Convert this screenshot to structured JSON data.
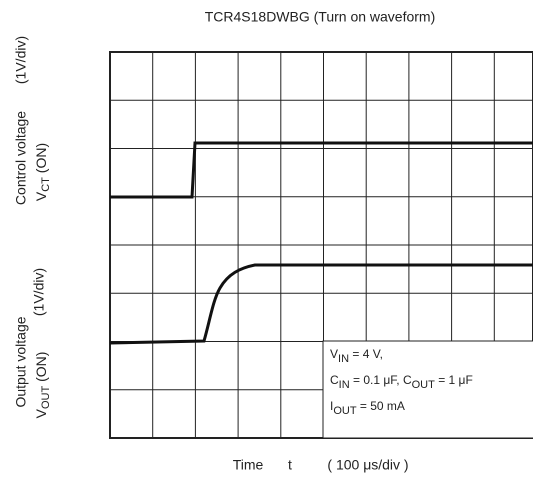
{
  "title": "TCR4S18DWBG (Turn on waveform)",
  "upper_label": {
    "line1": "Control voltage",
    "div": "(1V/div)",
    "line2": [
      {
        "t": "V"
      },
      {
        "t": "CT",
        "sub": true
      },
      {
        "t": " (ON)"
      }
    ]
  },
  "lower_label": {
    "line1": "Output voltage",
    "div": "(1V/div)",
    "line2": [
      {
        "t": "V"
      },
      {
        "t": "OUT",
        "sub": true
      },
      {
        "t": " (ON)"
      }
    ]
  },
  "x_label": {
    "name": "Time",
    "symbol": "t",
    "scale": "( 100 μs/div )"
  },
  "conditions": [
    [
      {
        "t": "V"
      },
      {
        "t": "IN",
        "sub": true
      },
      {
        "t": " = 4 V,"
      }
    ],
    [
      {
        "t": "C"
      },
      {
        "t": "IN",
        "sub": true
      },
      {
        "t": " = 0.1 μF, C"
      },
      {
        "t": "OUT",
        "sub": true
      },
      {
        "t": " = 1 μF"
      }
    ],
    [
      {
        "t": "I"
      },
      {
        "t": "OUT",
        "sub": true
      },
      {
        "t": " = 50 mA"
      }
    ]
  ]
}
